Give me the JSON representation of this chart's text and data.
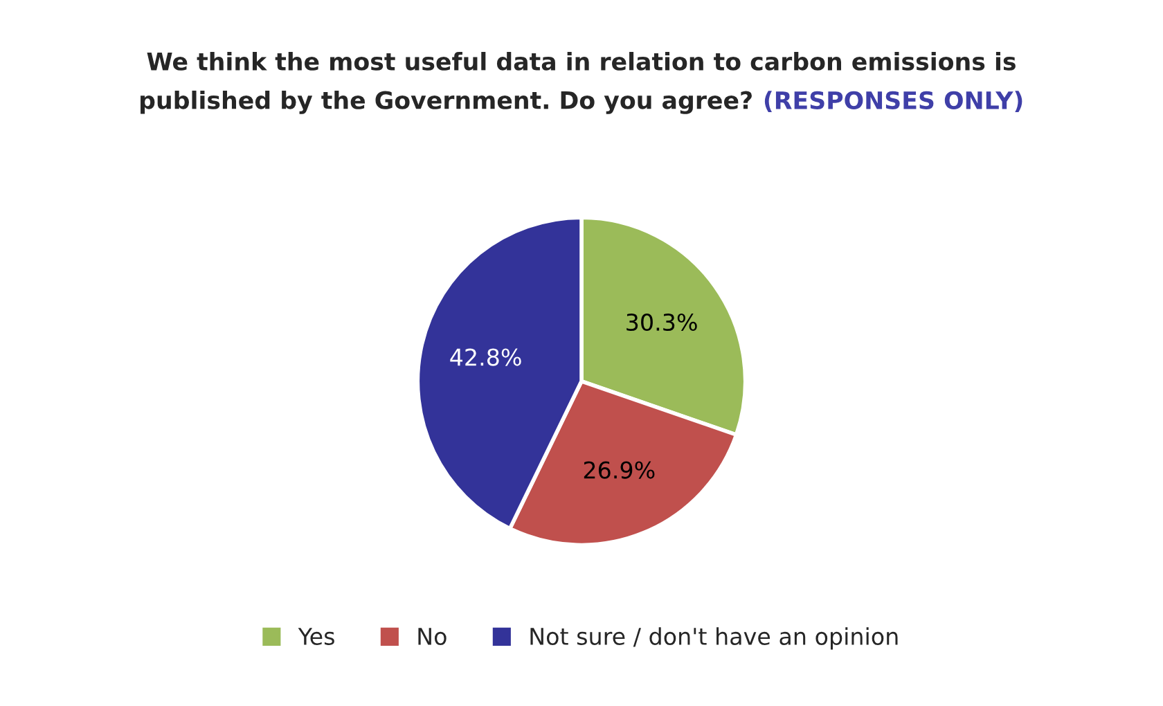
{
  "chart_data": {
    "type": "pie",
    "title": "We think the most useful data in relation to carbon emissions is\npublished by the Government. Do you agree?",
    "subtitle": "(RESPONSES ONLY)",
    "categories": [
      "Yes",
      "No",
      "Not sure / don't have an opinion"
    ],
    "values": [
      30.3,
      26.9,
      42.8
    ],
    "colors": [
      "#9bbb59",
      "#c0504d",
      "#333399"
    ],
    "value_labels": [
      "30.3%",
      "26.9%",
      "42.8%"
    ],
    "legend": "bottom"
  }
}
